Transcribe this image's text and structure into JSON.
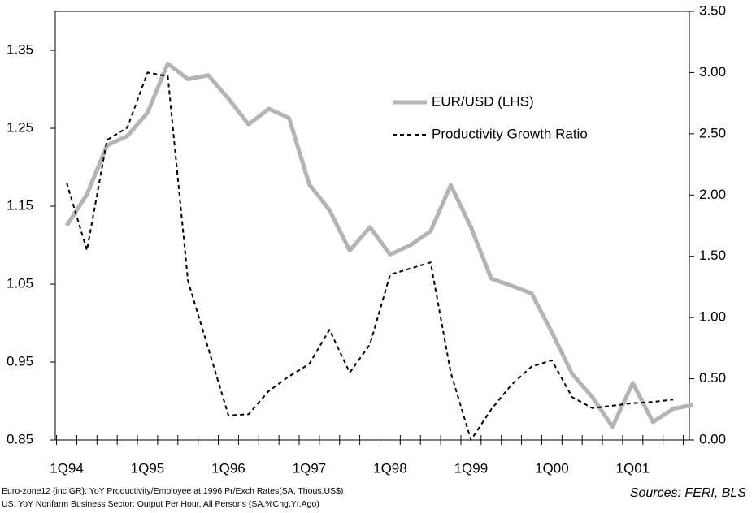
{
  "chart_data": {
    "type": "line",
    "categories": [
      "1Q94",
      null,
      null,
      null,
      "1Q95",
      null,
      null,
      null,
      "1Q96",
      null,
      null,
      null,
      "1Q97",
      null,
      null,
      null,
      "1Q98",
      null,
      null,
      null,
      "1Q99",
      null,
      null,
      null,
      "1Q00",
      null,
      null,
      null,
      "1Q01",
      null,
      null,
      null
    ],
    "series": [
      {
        "name": "EUR/USD (LHS)",
        "color": "#b4b4b4",
        "style": "solid",
        "values": [
          1.125,
          1.165,
          1.228,
          1.24,
          1.27,
          1.333,
          1.313,
          1.318,
          1.288,
          1.255,
          1.275,
          1.263,
          1.178,
          1.145,
          1.093,
          1.123,
          1.088,
          1.1,
          1.118,
          1.177,
          1.123,
          1.057,
          1.048,
          1.038,
          0.988,
          0.935,
          0.905,
          0.867,
          0.923,
          0.873,
          0.89,
          0.895
        ]
      },
      {
        "name": "Productivity Growth Ratio",
        "color": "#000000",
        "style": "dashed",
        "axis": "y2",
        "values": [
          2.1,
          1.55,
          2.45,
          2.55,
          3.0,
          2.97,
          1.3,
          0.75,
          0.2,
          0.21,
          0.4,
          0.52,
          0.62,
          0.9,
          0.55,
          0.78,
          1.35,
          1.4,
          1.45,
          0.55,
          0.0,
          0.25,
          0.45,
          0.6,
          0.65,
          0.35,
          0.26,
          0.28,
          0.3,
          0.31,
          0.33,
          null
        ]
      }
    ],
    "ylim": [
      0.85,
      1.4
    ],
    "yticks": [
      0.85,
      0.95,
      1.05,
      1.15,
      1.25,
      1.35
    ],
    "y2lim": [
      0,
      3.5
    ],
    "y2ticks": [
      {
        "value": 0,
        "label": "0.00"
      },
      {
        "value": 0.5,
        "label": "0.50"
      },
      {
        "value": 1,
        "label": "1.00"
      },
      {
        "value": 1.5,
        "label": "1.50"
      },
      {
        "value": 2,
        "label": "2.00"
      },
      {
        "value": 2.5,
        "label": "2.50"
      },
      {
        "value": 3,
        "label": "3.00"
      },
      {
        "value": 3.5,
        "label": "3.50"
      }
    ],
    "notes": [
      "Euro-zone12 {inc GR}: YoY Productivity/Employee at 1996 Pr/Exch Rates(SA, Thous.US$)",
      "US: YoY Nonfarm Business Sector: Output Per Hour, All Persons (SA,%Chg.Yr.Ago)"
    ],
    "source": "Sources: FERI, BLS"
  }
}
